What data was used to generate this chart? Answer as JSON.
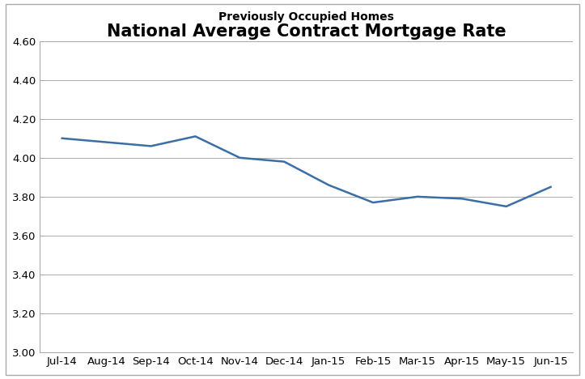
{
  "title": "National Average Contract Mortgage Rate",
  "subtitle": "Previously Occupied Homes",
  "categories": [
    "Jul-14",
    "Aug-14",
    "Sep-14",
    "Oct-14",
    "Nov-14",
    "Dec-14",
    "Jan-15",
    "Feb-15",
    "Mar-15",
    "Apr-15",
    "May-15",
    "Jun-15"
  ],
  "values": [
    4.1,
    4.08,
    4.06,
    4.11,
    4.0,
    3.98,
    3.86,
    3.77,
    3.8,
    3.79,
    3.75,
    3.85
  ],
  "line_color": "#3A6EA5",
  "ylim": [
    3.0,
    4.6
  ],
  "yticks": [
    3.0,
    3.2,
    3.4,
    3.6,
    3.8,
    4.0,
    4.2,
    4.4,
    4.6
  ],
  "background_color": "#ffffff",
  "title_fontsize": 15,
  "subtitle_fontsize": 10,
  "tick_fontsize": 9.5,
  "line_width": 1.8,
  "grid_color": "#aaaaaa",
  "border_color": "#aaaaaa",
  "box_color": "#aaaaaa"
}
